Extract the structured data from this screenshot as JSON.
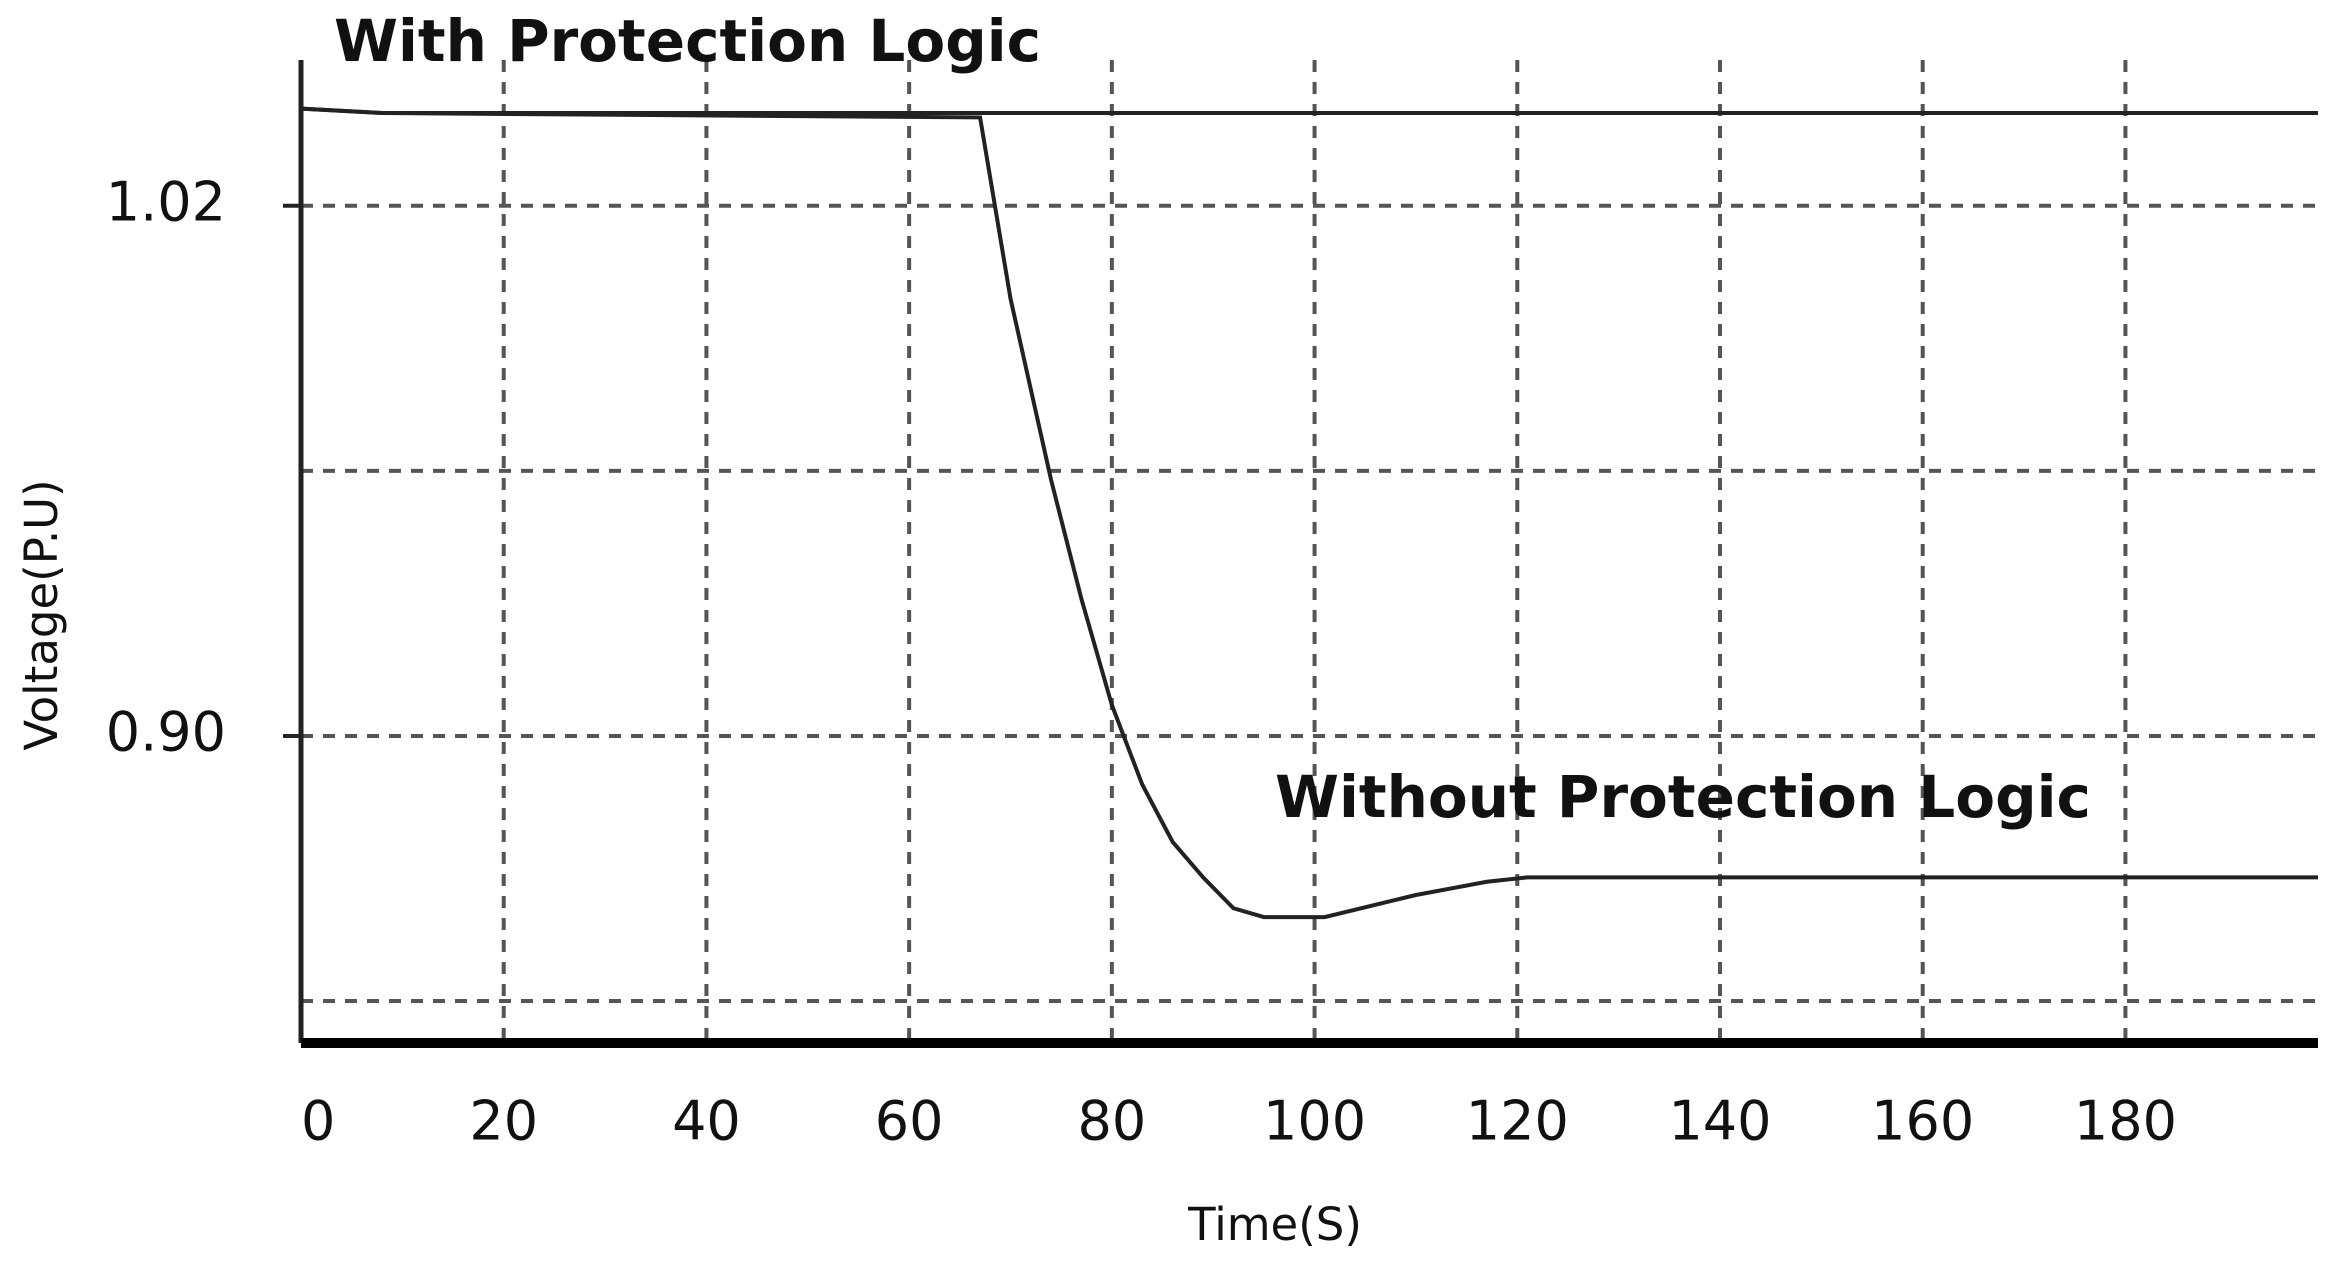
{
  "chart_data": {
    "type": "line",
    "xlabel": "Time(S)",
    "ylabel": "Voltage(P.U)",
    "x": [
      0,
      8,
      67,
      70,
      74,
      77,
      80,
      83,
      86,
      89,
      92,
      95,
      101,
      110,
      117,
      121,
      199
    ],
    "series": [
      {
        "name": "With Protection Logic",
        "color": "#222222",
        "values": [
          1.042,
          1.041,
          1.041,
          1.041,
          1.041,
          1.041,
          1.041,
          1.041,
          1.041,
          1.041,
          1.041,
          1.041,
          1.041,
          1.041,
          1.041,
          1.041,
          1.041
        ]
      },
      {
        "name": "Without Protection Logic",
        "color": "#222222",
        "values": [
          1.042,
          1.041,
          1.04,
          0.999,
          0.958,
          0.931,
          0.907,
          0.889,
          0.876,
          0.868,
          0.861,
          0.859,
          0.859,
          0.864,
          0.867,
          0.868,
          0.868
        ]
      }
    ],
    "xlim": [
      0,
      199
    ],
    "ylim": [
      0.8305,
      1.053
    ],
    "xticks": [
      0,
      20,
      40,
      60,
      80,
      100,
      120,
      140,
      160,
      180
    ],
    "yticks": [
      0.9,
      1.02
    ],
    "ygrid": [
      0.84,
      0.9,
      0.96,
      1.02
    ],
    "grid": true
  }
}
